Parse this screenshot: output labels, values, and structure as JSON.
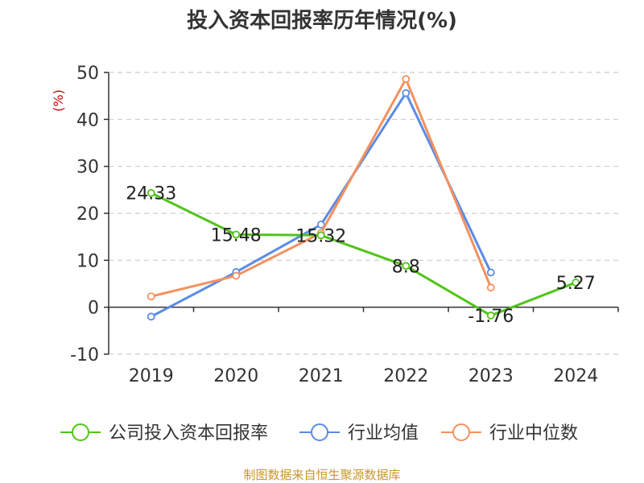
{
  "title": "投入资本回报率历年情况(%)",
  "y_unit": "(%)",
  "source": "制图数据来自恒生聚源数据库",
  "colors": {
    "company": "#52c41a",
    "industry_avg": "#5b8ce5",
    "industry_median": "#f4915e",
    "unit": "#cc0000",
    "source": "#c8962a"
  },
  "chart_data": {
    "type": "line",
    "title": "投入资本回报率历年情况(%)",
    "ylabel": "(%)",
    "categories": [
      "2019",
      "2020",
      "2021",
      "2022",
      "2023",
      "2024"
    ],
    "ylim": [
      -10,
      50
    ],
    "yticks": [
      -10,
      0,
      10,
      20,
      30,
      40,
      50
    ],
    "grid": true,
    "legend_position": "bottom",
    "series": [
      {
        "name": "公司投入资本回报率",
        "values": [
          24.33,
          15.48,
          15.32,
          8.8,
          -1.76,
          5.27
        ],
        "labels": [
          "24.33",
          "15.48",
          "15.32",
          "8.8",
          "-1.76",
          "5.27"
        ]
      },
      {
        "name": "行业均值",
        "values": [
          -2,
          7.5,
          17.6,
          45.6,
          7.4,
          null
        ]
      },
      {
        "name": "行业中位数",
        "values": [
          2.3,
          6.7,
          15.8,
          48.6,
          4.2,
          null
        ]
      }
    ]
  }
}
